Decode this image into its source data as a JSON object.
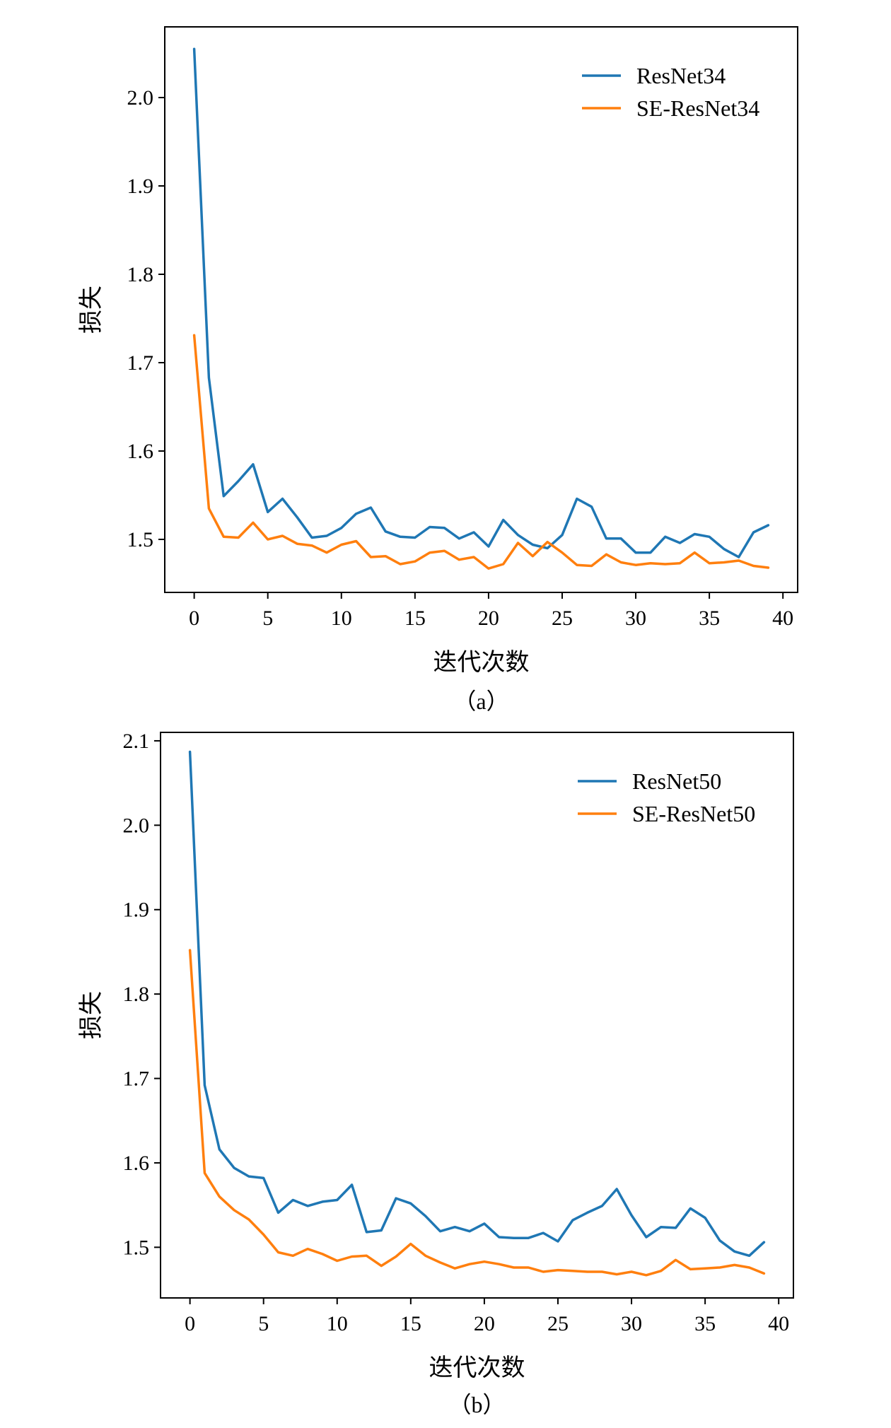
{
  "chart_data": [
    {
      "type": "line",
      "caption": "（a）",
      "xlabel": "迭代次数",
      "ylabel": "损失",
      "xlim": [
        -2,
        41
      ],
      "ylim": [
        1.44,
        2.08
      ],
      "xticks": [
        0,
        5,
        10,
        15,
        20,
        25,
        30,
        35,
        40
      ],
      "yticks": [
        1.5,
        1.6,
        1.7,
        1.8,
        1.9,
        2.0
      ],
      "legend_position": "top-right",
      "grid": false,
      "x": [
        0,
        1,
        2,
        3,
        4,
        5,
        6,
        7,
        8,
        9,
        10,
        11,
        12,
        13,
        14,
        15,
        16,
        17,
        18,
        19,
        20,
        21,
        22,
        23,
        24,
        25,
        26,
        27,
        28,
        29,
        30,
        31,
        32,
        33,
        34,
        35,
        36,
        37,
        38,
        39
      ],
      "series": [
        {
          "name": "ResNet34",
          "color": "#1f77b4",
          "values": [
            2.055,
            1.683,
            1.549,
            1.566,
            1.585,
            1.531,
            1.546,
            1.525,
            1.502,
            1.504,
            1.513,
            1.529,
            1.536,
            1.509,
            1.503,
            1.502,
            1.514,
            1.513,
            1.501,
            1.508,
            1.492,
            1.522,
            1.505,
            1.494,
            1.49,
            1.505,
            1.546,
            1.537,
            1.501,
            1.501,
            1.485,
            1.485,
            1.503,
            1.496,
            1.506,
            1.503,
            1.489,
            1.48,
            1.508,
            1.516
          ]
        },
        {
          "name": "SE-ResNet34",
          "color": "#ff7f0e",
          "values": [
            1.731,
            1.535,
            1.503,
            1.502,
            1.519,
            1.5,
            1.504,
            1.495,
            1.493,
            1.485,
            1.494,
            1.498,
            1.48,
            1.481,
            1.472,
            1.475,
            1.485,
            1.487,
            1.477,
            1.48,
            1.467,
            1.472,
            1.496,
            1.481,
            1.497,
            1.485,
            1.471,
            1.47,
            1.483,
            1.474,
            1.471,
            1.473,
            1.472,
            1.473,
            1.485,
            1.473,
            1.474,
            1.476,
            1.47,
            1.468
          ]
        }
      ]
    },
    {
      "type": "line",
      "caption": "（b）",
      "xlabel": "迭代次数",
      "ylabel": "损失",
      "xlim": [
        -2,
        41
      ],
      "ylim": [
        1.44,
        2.11
      ],
      "xticks": [
        0,
        5,
        10,
        15,
        20,
        25,
        30,
        35,
        40
      ],
      "yticks": [
        1.5,
        1.6,
        1.7,
        1.8,
        1.9,
        2.0,
        2.1
      ],
      "legend_position": "top-right",
      "grid": false,
      "x": [
        0,
        1,
        2,
        3,
        4,
        5,
        6,
        7,
        8,
        9,
        10,
        11,
        12,
        13,
        14,
        15,
        16,
        17,
        18,
        19,
        20,
        21,
        22,
        23,
        24,
        25,
        26,
        27,
        28,
        29,
        30,
        31,
        32,
        33,
        34,
        35,
        36,
        37,
        38,
        39
      ],
      "series": [
        {
          "name": "ResNet50",
          "color": "#1f77b4",
          "values": [
            2.087,
            1.692,
            1.616,
            1.594,
            1.584,
            1.582,
            1.541,
            1.556,
            1.549,
            1.554,
            1.556,
            1.574,
            1.518,
            1.52,
            1.558,
            1.552,
            1.537,
            1.519,
            1.524,
            1.519,
            1.528,
            1.512,
            1.511,
            1.511,
            1.517,
            1.507,
            1.532,
            1.541,
            1.549,
            1.569,
            1.538,
            1.512,
            1.524,
            1.523,
            1.546,
            1.535,
            1.508,
            1.495,
            1.49,
            1.506
          ]
        },
        {
          "name": "SE-ResNet50",
          "color": "#ff7f0e",
          "values": [
            1.852,
            1.588,
            1.56,
            1.544,
            1.533,
            1.515,
            1.494,
            1.49,
            1.498,
            1.492,
            1.484,
            1.489,
            1.49,
            1.478,
            1.489,
            1.504,
            1.49,
            1.482,
            1.475,
            1.48,
            1.483,
            1.48,
            1.476,
            1.476,
            1.471,
            1.473,
            1.472,
            1.471,
            1.471,
            1.468,
            1.471,
            1.467,
            1.472,
            1.485,
            1.474,
            1.475,
            1.476,
            1.479,
            1.476,
            1.469
          ]
        }
      ]
    }
  ]
}
